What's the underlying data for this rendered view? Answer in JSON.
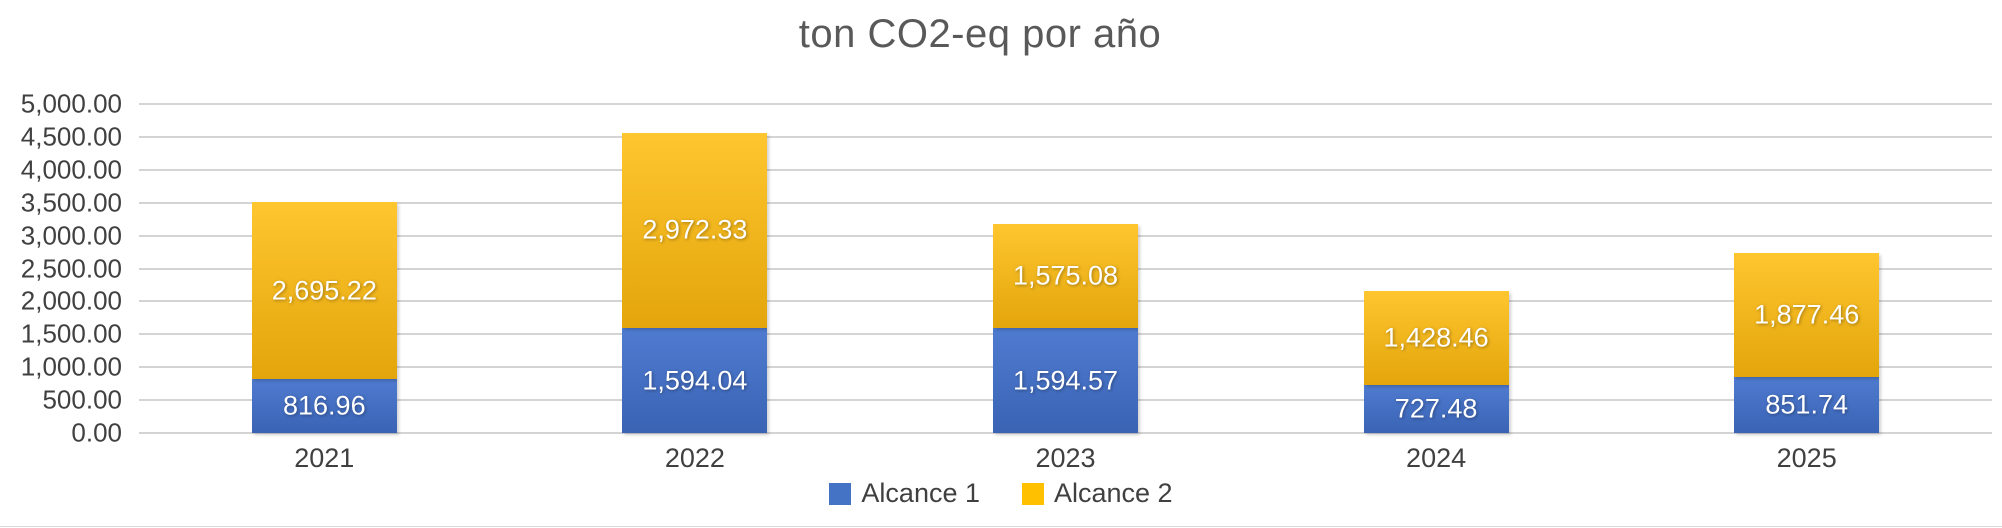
{
  "title": "ton CO2-eq por año",
  "chart_data": {
    "type": "bar",
    "stacked": true,
    "title": "ton CO2-eq por año",
    "categories": [
      "2021",
      "2022",
      "2023",
      "2024",
      "2025"
    ],
    "series": [
      {
        "name": "Alcance 1",
        "color": "#4472C4",
        "gradient_top": "#4f7bd0",
        "gradient_bottom": "#3a63b4",
        "values": [
          816.96,
          1594.04,
          1594.57,
          727.48,
          851.74
        ],
        "labels": [
          "816.96",
          "1,594.04",
          "1,594.57",
          "727.48",
          "851.74"
        ]
      },
      {
        "name": "Alcance 2",
        "color": "#FFC000",
        "gradient_top": "#ffc62f",
        "gradient_bottom": "#e3a50b",
        "values": [
          2695.22,
          2972.33,
          1575.08,
          1428.46,
          1877.46
        ],
        "labels": [
          "2,695.22",
          "2,972.33",
          "1,575.08",
          "1,428.46",
          "1,877.46"
        ]
      }
    ],
    "xlabel": "",
    "ylabel": "",
    "ylim": [
      0,
      5000
    ],
    "ytick_step": 500,
    "ytick_labels": [
      "0.00",
      "500.00",
      "1,000.00",
      "1,500.00",
      "2,000.00",
      "2,500.00",
      "3,000.00",
      "3,500.00",
      "4,000.00",
      "4,500.00",
      "5,000.00"
    ],
    "grid": true,
    "legend_position": "bottom"
  },
  "colors": {
    "title_text": "#595959",
    "axis_text": "#404040",
    "gridline": "#d4d4d4",
    "bar_label_text": "#ffffff",
    "background": "#ffffff"
  }
}
